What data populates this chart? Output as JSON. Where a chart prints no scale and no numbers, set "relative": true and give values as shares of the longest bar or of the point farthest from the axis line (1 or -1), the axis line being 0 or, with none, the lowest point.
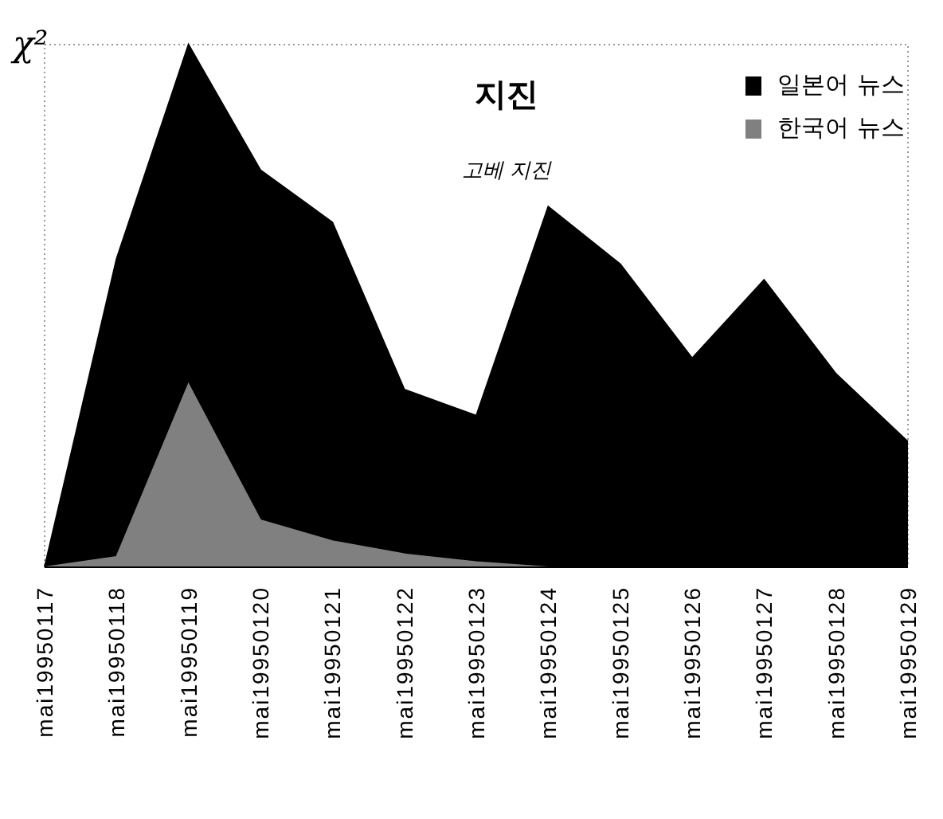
{
  "chart_data": {
    "type": "area",
    "title": "지진",
    "subtitle": "고베 지진",
    "ylabel": "χ²",
    "relative": true,
    "categories": [
      "mai19950117",
      "mai19950118",
      "mai19950119",
      "mai19950120",
      "mai19950121",
      "mai19950122",
      "mai19950123",
      "mai19950124",
      "mai19950125",
      "mai19950126",
      "mai19950127",
      "mai19950128",
      "mai19950129"
    ],
    "series": [
      {
        "name": "일본어 뉴스",
        "color": "#000000",
        "values": [
          0,
          0.59,
          1,
          0.76,
          0.66,
          0.34,
          0.29,
          0.69,
          0.58,
          0.4,
          0.55,
          0.37,
          0.24
        ]
      },
      {
        "name": "한국어 뉴스",
        "color": "#808080",
        "values": [
          0,
          0.02,
          0.35,
          0.09,
          0.05,
          0.025,
          0.01,
          0,
          0,
          0,
          0,
          0,
          0
        ]
      }
    ],
    "legend": "top right",
    "grid": false
  }
}
